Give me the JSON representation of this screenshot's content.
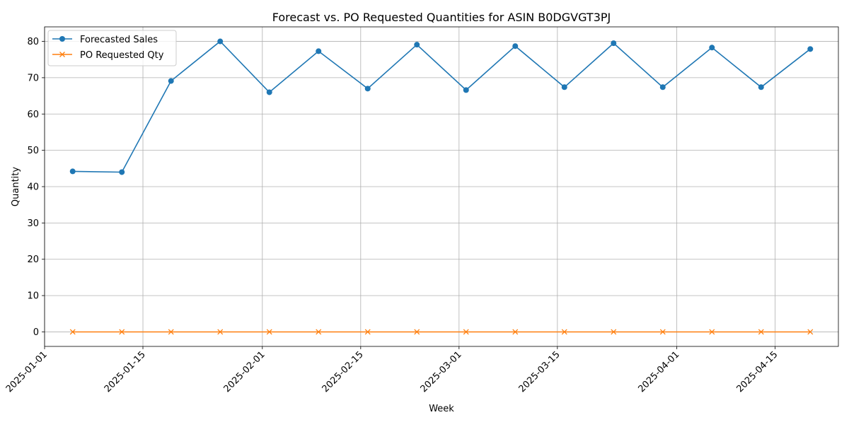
{
  "chart_data": {
    "type": "line",
    "title": "Forecast vs. PO Requested Quantities for ASIN B0DGVGT3PJ",
    "xlabel": "Week",
    "ylabel": "Quantity",
    "x": [
      "2025-01-05",
      "2025-01-12",
      "2025-01-19",
      "2025-01-26",
      "2025-02-02",
      "2025-02-09",
      "2025-02-16",
      "2025-02-23",
      "2025-03-02",
      "2025-03-09",
      "2025-03-16",
      "2025-03-23",
      "2025-03-30",
      "2025-04-06",
      "2025-04-13",
      "2025-04-20"
    ],
    "xlim": [
      "2025-01-01",
      "2025-04-24"
    ],
    "ylim": [
      -4,
      84
    ],
    "x_ticks": [
      "2025-01-01",
      "2025-01-15",
      "2025-02-01",
      "2025-02-15",
      "2025-03-01",
      "2025-03-15",
      "2025-04-01",
      "2025-04-15"
    ],
    "y_ticks": [
      0,
      10,
      20,
      30,
      40,
      50,
      60,
      70,
      80
    ],
    "grid": true,
    "legend_position": "upper-left",
    "series": [
      {
        "name": "Forecasted Sales",
        "color": "#1f77b4",
        "marker": "circle",
        "values": [
          44.2,
          44.0,
          69.1,
          80.0,
          66.0,
          77.3,
          67.0,
          79.1,
          66.6,
          78.7,
          67.4,
          79.5,
          67.4,
          78.3,
          67.4,
          77.9
        ]
      },
      {
        "name": "PO Requested Qty",
        "color": "#ff7f0e",
        "marker": "x",
        "values": [
          0,
          0,
          0,
          0,
          0,
          0,
          0,
          0,
          0,
          0,
          0,
          0,
          0,
          0,
          0,
          0
        ]
      }
    ]
  }
}
